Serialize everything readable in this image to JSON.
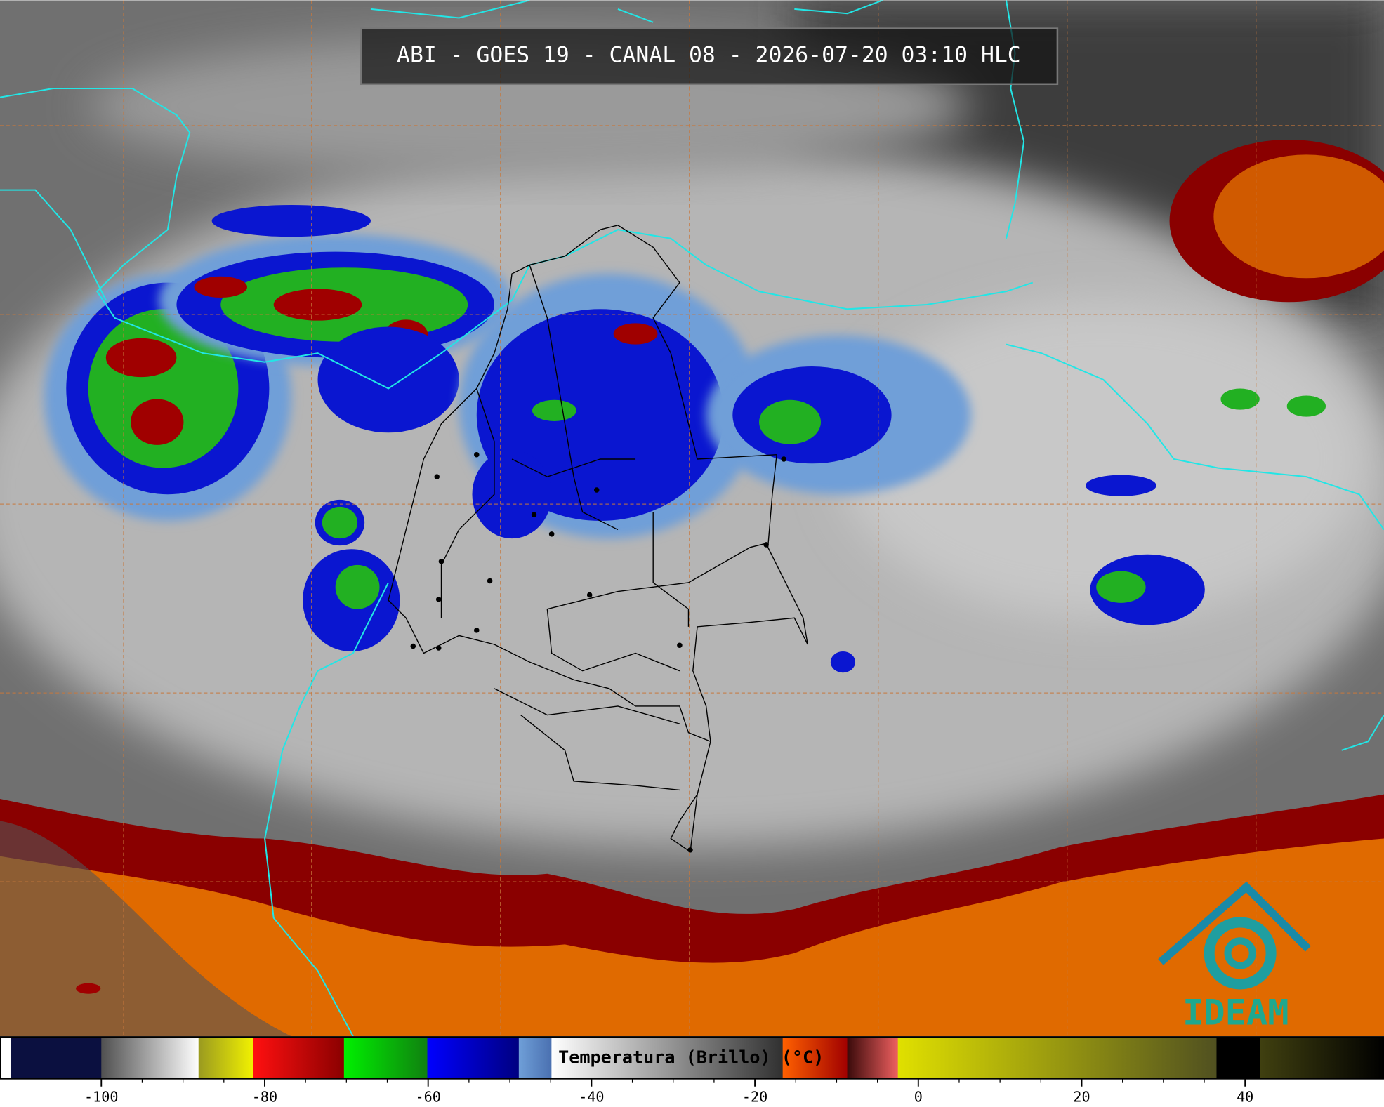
{
  "header": {
    "title": "ABI - GOES 19 - CANAL 08 - 2026-07-20 03:10 HLC"
  },
  "colorbar": {
    "label": "Temperatura (Brillo) (°C)",
    "range": [
      -112.4,
      57
    ],
    "ticks": [
      -100,
      -80,
      -60,
      -40,
      -20,
      0,
      20,
      40
    ],
    "segments": [
      {
        "from": -112.4,
        "to": -111.1,
        "colors": [
          "#ffffff",
          "#ffffff"
        ]
      },
      {
        "from": -111.1,
        "to": -100,
        "colors": [
          "#0b1040",
          "#0b1040"
        ]
      },
      {
        "from": -100,
        "to": -88.1,
        "colors": [
          "#505050",
          "#ffffff"
        ]
      },
      {
        "from": -88.1,
        "to": -81.4,
        "colors": [
          "#9a9a20",
          "#f2f200"
        ]
      },
      {
        "from": -81.4,
        "to": -70.3,
        "colors": [
          "#ff1010",
          "#8a0000"
        ]
      },
      {
        "from": -70.3,
        "to": -60.1,
        "colors": [
          "#00f000",
          "#108010"
        ]
      },
      {
        "from": -60.1,
        "to": -48.9,
        "colors": [
          "#0000ff",
          "#000080"
        ]
      },
      {
        "from": -48.9,
        "to": -44.9,
        "colors": [
          "#6f9fd8",
          "#4a70b0"
        ]
      },
      {
        "from": -44.9,
        "to": -16.6,
        "colors": [
          "#ffffff",
          "#303030"
        ]
      },
      {
        "from": -16.6,
        "to": -8.7,
        "colors": [
          "#ff6000",
          "#a00000"
        ]
      },
      {
        "from": -8.7,
        "to": -2.5,
        "colors": [
          "#3a0a0a",
          "#f06060"
        ]
      },
      {
        "from": -2.5,
        "to": 36.5,
        "colors": [
          "#e0e000",
          "#505020"
        ]
      },
      {
        "from": 36.5,
        "to": 41.8,
        "colors": [
          "#000000",
          "#000000"
        ]
      },
      {
        "from": 41.8,
        "to": 57,
        "colors": [
          "#404010",
          "#000000"
        ]
      }
    ]
  },
  "logo": {
    "text": "IDEAM"
  }
}
